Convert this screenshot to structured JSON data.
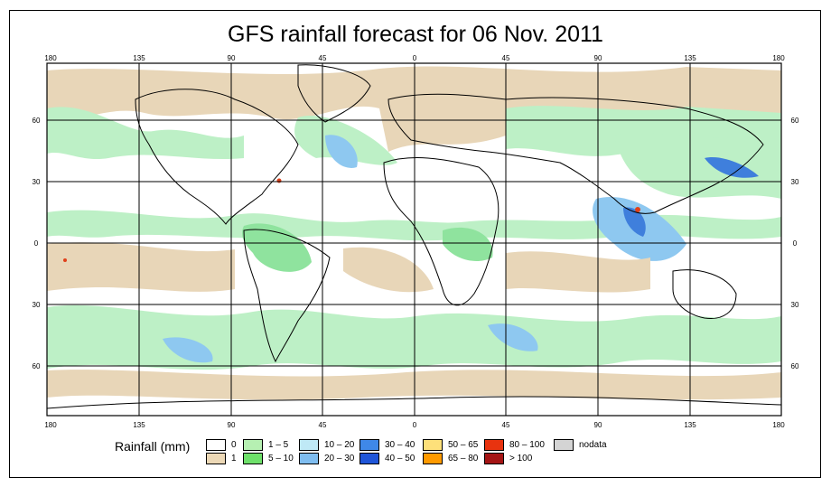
{
  "map": {
    "title": "GFS rainfall forecast for 06 Nov. 2011",
    "lon_labels": [
      "180",
      "135",
      "90",
      "45",
      "0",
      "45",
      "90",
      "135",
      "180"
    ],
    "lat_labels": [
      "60",
      "30",
      "0",
      "30",
      "60"
    ],
    "colors": {
      "ocean_light": "#e8d6b8",
      "rain_light": "#bdf0c6",
      "rain_green": "#8fe39e",
      "rain_blue": "#8ec8f0",
      "rain_dark": "#3f7fdc",
      "heavy": "#e0401a"
    }
  },
  "legend": {
    "title": "Rainfall (mm)",
    "items": [
      {
        "label": "0",
        "color": "#ffffff"
      },
      {
        "label": "1",
        "color": "#ecd8b6"
      },
      {
        "label": "1 – 5",
        "color": "#b6f0b2"
      },
      {
        "label": "5 – 10",
        "color": "#6ee06a"
      },
      {
        "label": "10 – 20",
        "color": "#bfe9f6"
      },
      {
        "label": "20 – 30",
        "color": "#7fbdf0"
      },
      {
        "label": "30 – 40",
        "color": "#3f88e8"
      },
      {
        "label": "40 – 50",
        "color": "#1f55d8"
      },
      {
        "label": "50 – 65",
        "color": "#fde07a"
      },
      {
        "label": "65 – 80",
        "color": "#ff9a00"
      },
      {
        "label": "80 – 100",
        "color": "#e8330f"
      },
      {
        "label": "> 100",
        "color": "#a51515"
      },
      {
        "label": "nodata",
        "color": "#d4d4d4"
      }
    ]
  }
}
